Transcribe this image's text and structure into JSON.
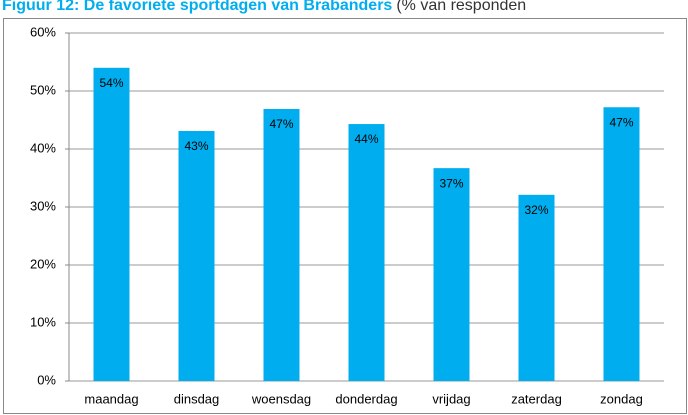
{
  "chart_data": {
    "type": "bar",
    "title": "Figuur 12: De favoriete sportdagen van Brabanders",
    "subtitle": "(% van responden",
    "categories": [
      "maandag",
      "dinsdag",
      "woensdag",
      "donderdag",
      "vrijdag",
      "zaterdag",
      "zondag"
    ],
    "values": [
      54,
      43.1,
      46.9,
      44.3,
      36.7,
      32.1,
      47.2
    ],
    "value_labels": [
      "54%",
      "43%",
      "47%",
      "44%",
      "37%",
      "32%",
      "47%"
    ],
    "color": "#00aeef",
    "ylim": [
      0,
      60
    ],
    "yticks": [
      {
        "value": 0,
        "label": "0%"
      },
      {
        "value": 10,
        "label": "10%"
      },
      {
        "value": 20,
        "label": "20%"
      },
      {
        "value": 30,
        "label": "30%"
      },
      {
        "value": 40,
        "label": "40%"
      },
      {
        "value": 50,
        "label": "50%"
      },
      {
        "value": 60,
        "label": "60%"
      }
    ],
    "grid": true
  }
}
